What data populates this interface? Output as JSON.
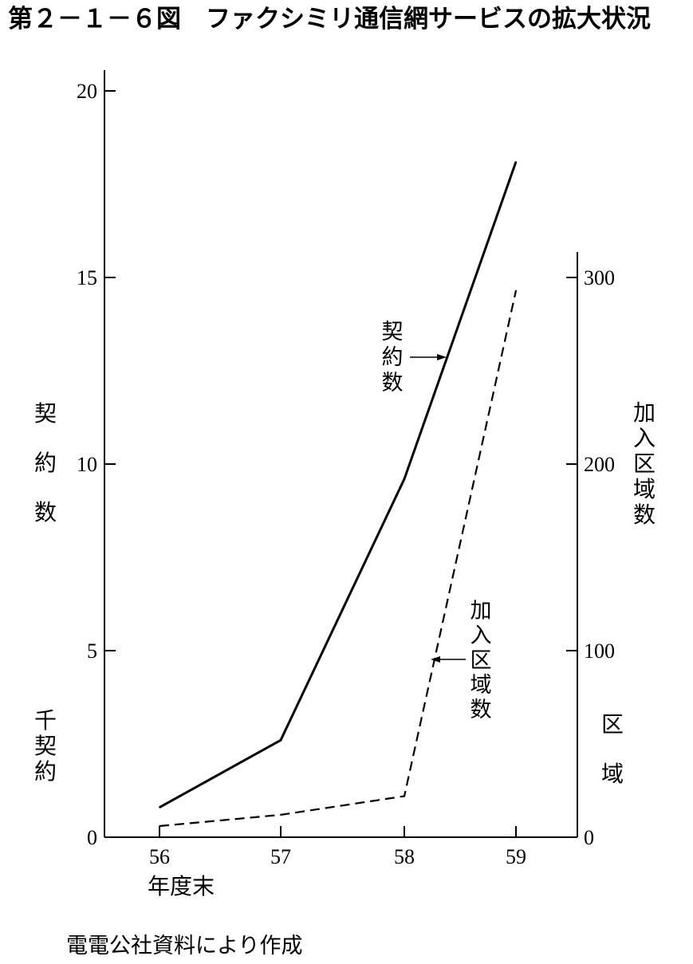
{
  "title": "第２－１－６図　ファクシミリ通信網サービスの拡大状況",
  "source": "電電公社資料により作成",
  "chart_data": {
    "type": "line",
    "x": [
      "56",
      "57",
      "58",
      "59"
    ],
    "xlabel": "年度末",
    "y_left": {
      "label": "契約数",
      "unit": "千契約",
      "ticks": [
        "0",
        "5",
        "10",
        "15",
        "20"
      ],
      "ylim": [
        0,
        20
      ]
    },
    "y_right": {
      "label": "加入区域数",
      "unit": "区域",
      "ticks": [
        "0",
        "100",
        "200",
        "300"
      ],
      "ylim": [
        0,
        300
      ]
    },
    "series": [
      {
        "name": "契約数",
        "axis": "left",
        "style": "solid",
        "color": "#000000",
        "values": [
          0.8,
          2.6,
          9.6,
          18.1
        ]
      },
      {
        "name": "加入区域数",
        "axis": "right",
        "style": "dashed",
        "color": "#000000",
        "values": [
          6,
          12,
          22,
          293
        ]
      }
    ],
    "annotations": [
      "契約数",
      "加入区域数"
    ],
    "grid": false,
    "legend": "none"
  }
}
